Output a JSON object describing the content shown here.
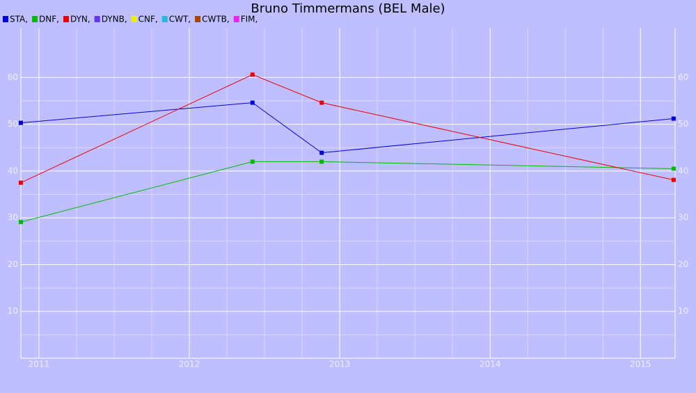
{
  "chart_data": {
    "type": "line",
    "title": "Bruno Timmermans (BEL Male)",
    "x": [
      2010.88,
      2012.42,
      2012.88,
      2015.22
    ],
    "series": [
      {
        "name": "STA,",
        "color": "#0000dd",
        "values": [
          50.3,
          54.6,
          43.9,
          51.2
        ]
      },
      {
        "name": "DNF,",
        "color": "#00bb00",
        "values": [
          29.1,
          42.0,
          42.0,
          40.5
        ]
      },
      {
        "name": "DYN,",
        "color": "#ee0000",
        "values": [
          37.5,
          60.6,
          54.6,
          38.1
        ]
      },
      {
        "name": "DYNB,",
        "color": "#6633ee",
        "values": [
          null,
          null,
          null,
          null
        ]
      },
      {
        "name": "CNF,",
        "color": "#eeee00",
        "values": [
          null,
          null,
          null,
          null
        ]
      },
      {
        "name": "CWT,",
        "color": "#22bbdd",
        "values": [
          null,
          null,
          null,
          null
        ]
      },
      {
        "name": "CWTB,",
        "color": "#aa4400",
        "values": [
          null,
          null,
          null,
          null
        ]
      },
      {
        "name": "FIM,",
        "color": "#ee22ee",
        "values": [
          null,
          null,
          null,
          null
        ]
      }
    ],
    "xlim": [
      2010.88,
      2015.23
    ],
    "xticks": [
      2011,
      2012,
      2013,
      2014,
      2015
    ],
    "ylim": [
      0,
      70.6
    ],
    "yticks": [
      10,
      20,
      30,
      40,
      50,
      60
    ],
    "grid": true
  }
}
